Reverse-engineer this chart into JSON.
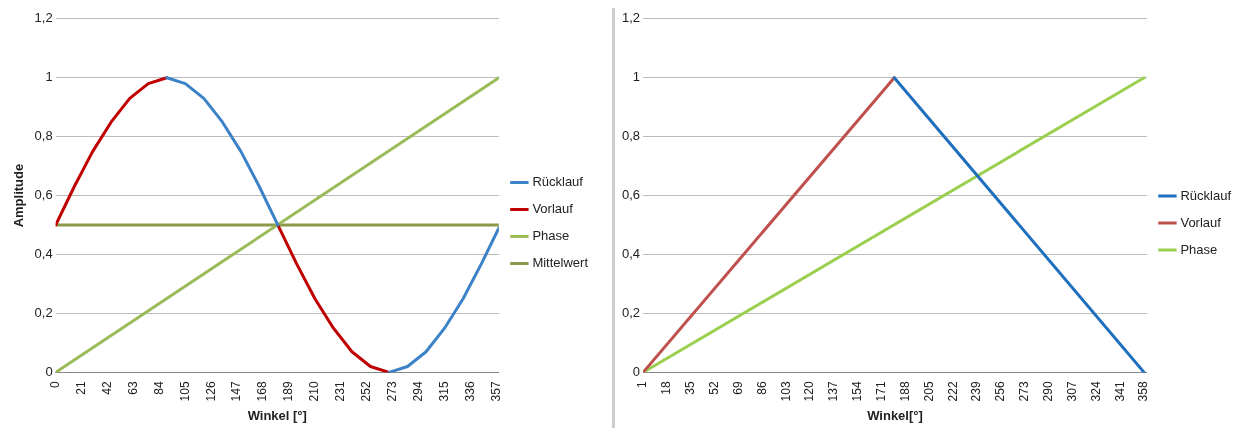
{
  "chart_data": [
    {
      "type": "line",
      "ylabel": "Amplitude",
      "xlabel": "Winkel [°]",
      "legend": "right",
      "grid": "y",
      "marker": "none",
      "line_style": "solid",
      "xlim": [
        0,
        359
      ],
      "xticks": [
        0,
        21,
        42,
        63,
        84,
        105,
        126,
        147,
        168,
        189,
        210,
        231,
        252,
        273,
        294,
        315,
        336,
        357
      ],
      "ylim": [
        0,
        1.2
      ],
      "yticks": [
        {
          "value": 0,
          "label": "0"
        },
        {
          "value": 0.2,
          "label": "0,2"
        },
        {
          "value": 0.4,
          "label": "0,4"
        },
        {
          "value": 0.6,
          "label": "0,6"
        },
        {
          "value": 0.8,
          "label": "0,8"
        },
        {
          "value": 1,
          "label": "1"
        },
        {
          "value": 1.2,
          "label": "1,2"
        }
      ],
      "series": [
        {
          "name": "Rücklauf",
          "color": "#3c82c8",
          "x": [
            90,
            105,
            120,
            135,
            150,
            165,
            180,
            225,
            270,
            285,
            300,
            315,
            330,
            345,
            359
          ],
          "values": [
            1,
            0.98,
            0.93,
            0.85,
            0.75,
            0.63,
            0.5,
            null,
            0,
            0.02,
            0.07,
            0.15,
            0.25,
            0.37,
            0.49
          ]
        },
        {
          "name": "Vorlauf",
          "color": "#c00000",
          "x": [
            0,
            15,
            30,
            45,
            60,
            75,
            90,
            135,
            180,
            195,
            210,
            225,
            240,
            255,
            270
          ],
          "values": [
            0.5,
            0.63,
            0.75,
            0.85,
            0.93,
            0.98,
            1,
            null,
            0.5,
            0.37,
            0.25,
            0.15,
            0.07,
            0.02,
            0
          ]
        },
        {
          "name": "Phase",
          "color": "#9bbb59",
          "x": [
            0,
            359
          ],
          "values": [
            0,
            1
          ]
        },
        {
          "name": "Mittelwert",
          "color": "#8c9a48",
          "x": [
            0,
            359
          ],
          "values": [
            0.5,
            0.5
          ]
        }
      ]
    },
    {
      "type": "line",
      "xlabel": "Winkel[°]",
      "legend": "right",
      "grid": "y",
      "marker": "none",
      "line_style": "solid",
      "xlim": [
        1,
        360
      ],
      "xticks": [
        1,
        18,
        35,
        52,
        69,
        86,
        103,
        120,
        137,
        154,
        171,
        188,
        205,
        222,
        239,
        256,
        273,
        290,
        307,
        324,
        341,
        358
      ],
      "ylim": [
        0,
        1.2
      ],
      "yticks": [
        {
          "value": 0,
          "label": "0"
        },
        {
          "value": 0.2,
          "label": "0,2"
        },
        {
          "value": 0.4,
          "label": "0,4"
        },
        {
          "value": 0.6,
          "label": "0,6"
        },
        {
          "value": 0.8,
          "label": "0,8"
        },
        {
          "value": 1,
          "label": "1"
        },
        {
          "value": 1.2,
          "label": "1,2"
        }
      ],
      "series": [
        {
          "name": "Rücklauf",
          "color": "#1f6fbf",
          "x": [
            180,
            358
          ],
          "values": [
            1,
            0
          ]
        },
        {
          "name": "Vorlauf",
          "color": "#c0504d",
          "x": [
            1,
            180
          ],
          "values": [
            0,
            1
          ]
        },
        {
          "name": "Phase",
          "color": "#9bcf50",
          "x": [
            1,
            358
          ],
          "values": [
            0,
            1
          ]
        }
      ]
    }
  ]
}
